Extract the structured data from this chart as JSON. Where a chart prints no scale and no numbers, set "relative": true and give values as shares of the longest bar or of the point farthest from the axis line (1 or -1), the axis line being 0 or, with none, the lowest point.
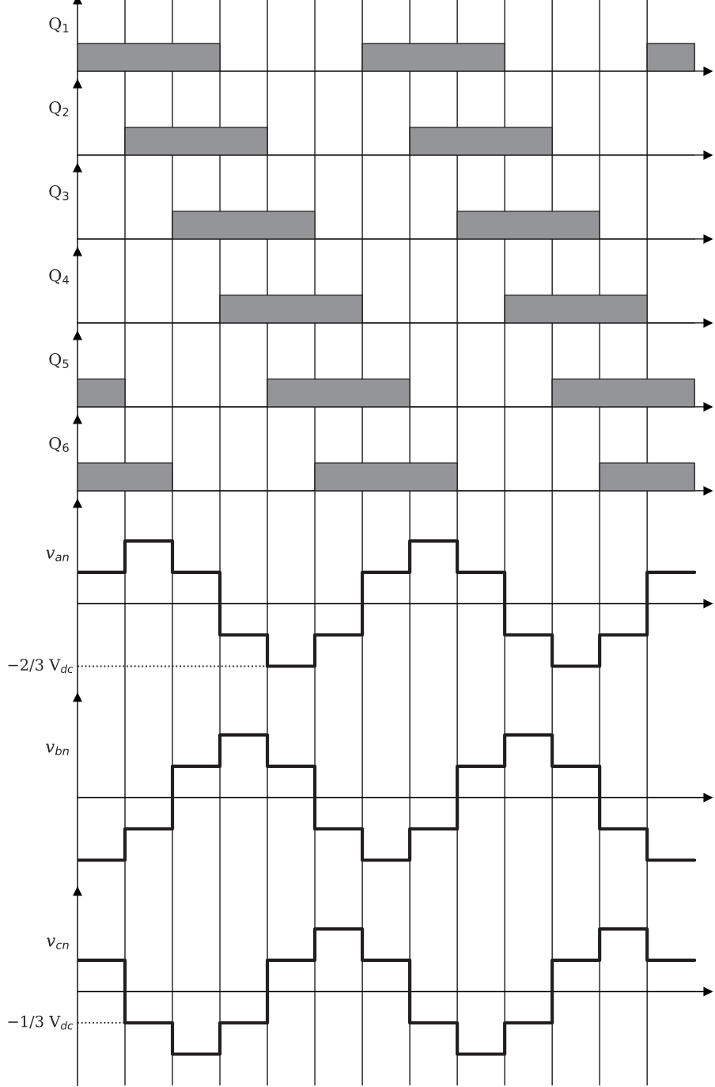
{
  "chart_data": [
    {
      "type": "area",
      "relative": true,
      "ylabel": "Q$_{1}$",
      "categories": [
        null,
        null,
        null,
        null,
        null,
        null,
        null,
        null,
        null,
        null,
        null,
        null,
        null,
        null
      ],
      "grid": "x",
      "series": [
        {
          "color": "#939598",
          "values": [
            1,
            1,
            1,
            0,
            0,
            0,
            1,
            1,
            1,
            0,
            0,
            0,
            1,
            1
          ]
        }
      ]
    },
    {
      "type": "area",
      "relative": true,
      "ylabel": "Q$_{2}$",
      "categories": [
        null,
        null,
        null,
        null,
        null,
        null,
        null,
        null,
        null,
        null,
        null,
        null,
        null,
        null
      ],
      "grid": "x",
      "series": [
        {
          "color": "#939598",
          "values": [
            0,
            1,
            1,
            1,
            0,
            0,
            0,
            1,
            1,
            1,
            0,
            0,
            0,
            0
          ]
        }
      ]
    },
    {
      "type": "area",
      "relative": true,
      "ylabel": "Q$_{3}$",
      "categories": [
        null,
        null,
        null,
        null,
        null,
        null,
        null,
        null,
        null,
        null,
        null,
        null,
        null,
        null
      ],
      "grid": "x",
      "series": [
        {
          "color": "#939598",
          "values": [
            0,
            0,
            1,
            1,
            1,
            0,
            0,
            0,
            1,
            1,
            1,
            0,
            0,
            0
          ]
        }
      ]
    },
    {
      "type": "area",
      "relative": true,
      "ylabel": "Q$_{4}$",
      "categories": [
        null,
        null,
        null,
        null,
        null,
        null,
        null,
        null,
        null,
        null,
        null,
        null,
        null,
        null
      ],
      "grid": "x",
      "series": [
        {
          "color": "#939598",
          "values": [
            0,
            0,
            0,
            1,
            1,
            1,
            0,
            0,
            0,
            1,
            1,
            1,
            0,
            0
          ]
        }
      ]
    },
    {
      "type": "area",
      "relative": true,
      "ylabel": "Q$_{5}$",
      "categories": [
        null,
        null,
        null,
        null,
        null,
        null,
        null,
        null,
        null,
        null,
        null,
        null,
        null,
        null
      ],
      "grid": "x",
      "series": [
        {
          "color": "#939598",
          "values": [
            1,
            0,
            0,
            0,
            1,
            1,
            1,
            0,
            0,
            0,
            1,
            1,
            1,
            1
          ]
        }
      ]
    },
    {
      "type": "area",
      "relative": true,
      "ylabel": "Q$_{6}$",
      "categories": [
        null,
        null,
        null,
        null,
        null,
        null,
        null,
        null,
        null,
        null,
        null,
        null,
        null,
        null
      ],
      "grid": "x",
      "series": [
        {
          "color": "#939598",
          "values": [
            1,
            1,
            0,
            0,
            0,
            1,
            1,
            1,
            0,
            0,
            0,
            1,
            1,
            1
          ]
        }
      ]
    },
    {
      "type": "step",
      "relative": true,
      "ylabel": "v$_{an}$",
      "categories": [
        null,
        null,
        null,
        null,
        null,
        null,
        null,
        null,
        null,
        null,
        null,
        null,
        null,
        null
      ],
      "grid": "x",
      "series": [
        {
          "color": "#231f20",
          "values": [
            0.5,
            1,
            0.5,
            -0.5,
            -1,
            -0.5,
            0.5,
            1,
            0.5,
            -0.5,
            -1,
            -0.5,
            0.5,
            0.5
          ]
        }
      ],
      "ref_lines": [
        {
          "axis": "y",
          "value": -1,
          "label": "−2/3 V$_{dc}$",
          "line_style": "dotted",
          "color": "#231f20"
        }
      ]
    },
    {
      "type": "step",
      "relative": true,
      "ylabel": "v$_{bn}$",
      "categories": [
        null,
        null,
        null,
        null,
        null,
        null,
        null,
        null,
        null,
        null,
        null,
        null,
        null,
        null
      ],
      "grid": "x",
      "series": [
        {
          "color": "#231f20",
          "values": [
            -1,
            -0.5,
            0.5,
            1,
            0.5,
            -0.5,
            -1,
            -0.5,
            0.5,
            1,
            0.5,
            -0.5,
            -1,
            -1
          ]
        }
      ]
    },
    {
      "type": "step",
      "relative": true,
      "ylabel": "v$_{cn}$",
      "categories": [
        null,
        null,
        null,
        null,
        null,
        null,
        null,
        null,
        null,
        null,
        null,
        null,
        null,
        null
      ],
      "grid": "x",
      "series": [
        {
          "color": "#231f20",
          "values": [
            0.5,
            -0.5,
            -1,
            -0.5,
            0.5,
            1,
            0.5,
            -0.5,
            -1,
            -0.5,
            0.5,
            1,
            0.5,
            0.5
          ]
        }
      ],
      "ref_lines": [
        {
          "axis": "y",
          "value": -0.5,
          "label": "−1/3 V$_{dc}$",
          "line_style": "dotted",
          "color": "#231f20"
        }
      ]
    }
  ]
}
